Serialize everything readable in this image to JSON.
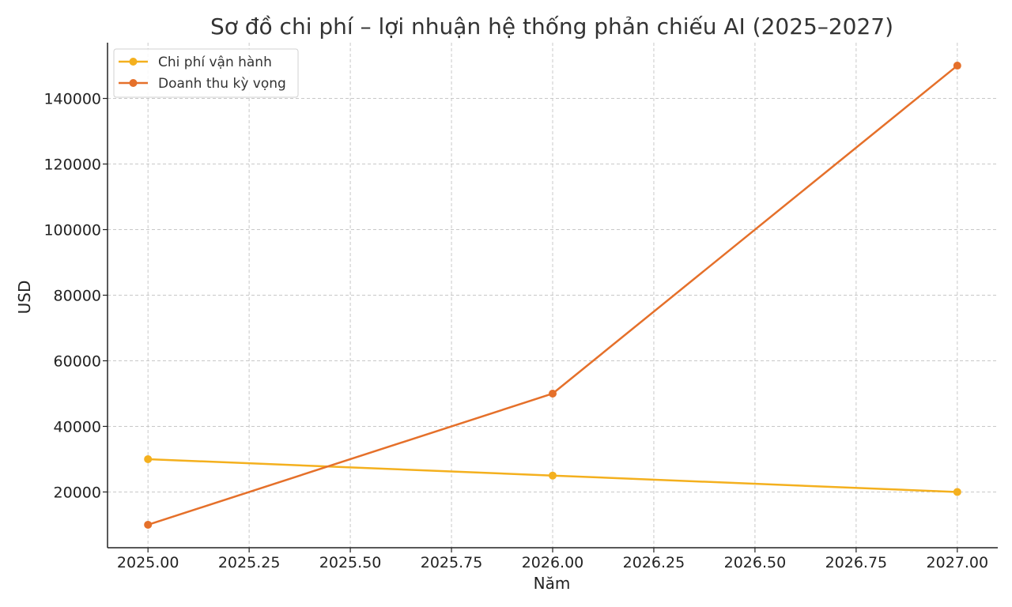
{
  "chart_data": {
    "type": "line",
    "title": "Sơ đồ chi phí – lợi nhuận hệ thống phản chiếu AI (2025–2027)",
    "xlabel": "Năm",
    "ylabel": "USD",
    "x": [
      2025,
      2026,
      2027
    ],
    "xlim": [
      2024.9,
      2027.1
    ],
    "ylim": [
      3000,
      157000
    ],
    "xticks": [
      "2025.00",
      "2025.25",
      "2025.50",
      "2025.75",
      "2026.00",
      "2026.25",
      "2026.50",
      "2026.75",
      "2027.00"
    ],
    "xtick_values": [
      2025.0,
      2025.25,
      2025.5,
      2025.75,
      2026.0,
      2026.25,
      2026.5,
      2026.75,
      2027.0
    ],
    "yticks": [
      "20000",
      "40000",
      "60000",
      "80000",
      "100000",
      "120000",
      "140000"
    ],
    "ytick_values": [
      20000,
      40000,
      60000,
      80000,
      100000,
      120000,
      140000
    ],
    "grid": true,
    "legend_position": "top-left",
    "series": [
      {
        "name": "Chi phí vận hành",
        "values": [
          30000,
          25000,
          20000
        ],
        "color": "#f4b01e"
      },
      {
        "name": "Doanh thu kỳ vọng",
        "values": [
          10000,
          50000,
          150000
        ],
        "color": "#e5702a"
      }
    ]
  }
}
